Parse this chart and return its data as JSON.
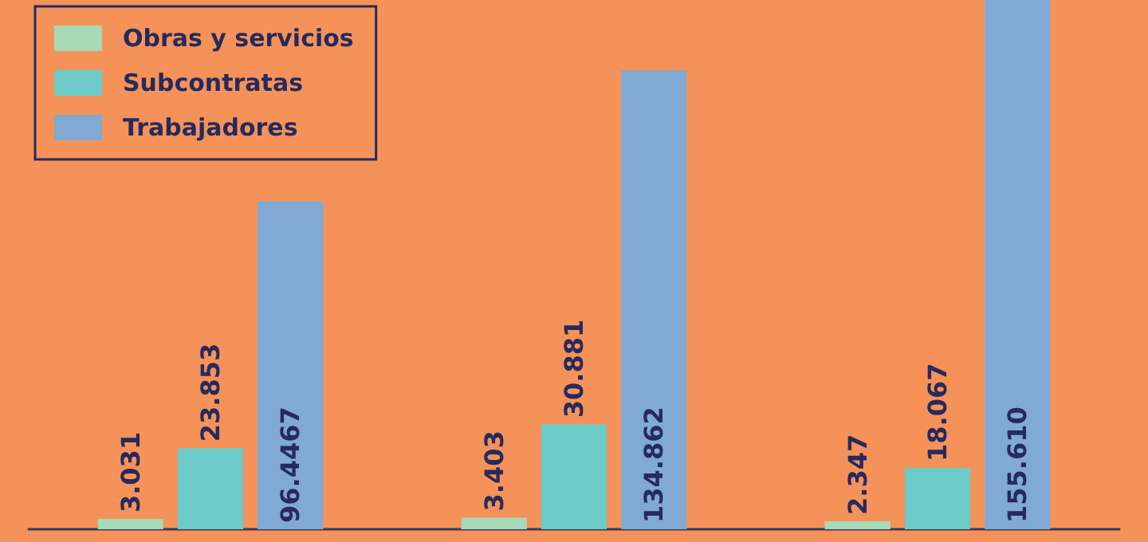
{
  "chart_data": {
    "type": "bar",
    "categories": [
      null,
      null,
      null
    ],
    "series": [
      {
        "name": "Obras y servicios",
        "color": "#a6d9b5",
        "values": [
          3.031,
          3.403,
          2.347
        ],
        "value_labels": [
          "3.031",
          "3.403",
          "2.347"
        ]
      },
      {
        "name": "Subcontratas",
        "color": "#6ccbc8",
        "values": [
          23.853,
          30.881,
          18.067
        ],
        "value_labels": [
          "23.853",
          "30.881",
          "18.067"
        ]
      },
      {
        "name": "Trabajadores",
        "color": "#80a9d4",
        "values": [
          96.4467,
          134.862,
          155.61
        ],
        "value_labels": [
          "96.4467",
          "134.862",
          "155.610"
        ]
      }
    ],
    "legend": "top left",
    "grid": false
  }
}
